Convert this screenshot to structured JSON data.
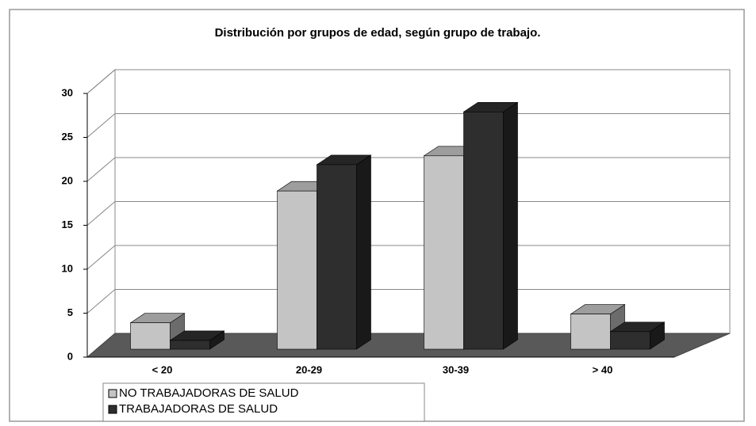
{
  "chart_data": {
    "type": "bar3d",
    "title": "Distribución por grupos de edad, según grupo de trabajo.",
    "categories": [
      "< 20",
      "20-29",
      "30-39",
      "> 40"
    ],
    "series": [
      {
        "name": "NO TRABAJADORAS DE SALUD",
        "color": "#c4c4c4",
        "values": [
          3,
          18,
          22,
          4
        ]
      },
      {
        "name": "TRABAJADORAS DE SALUD",
        "color": "#2e2e2e",
        "values": [
          1,
          21,
          27,
          2
        ]
      }
    ],
    "ylim": [
      0,
      30
    ],
    "yticks": [
      0,
      5,
      10,
      15,
      20,
      25,
      30
    ],
    "grid": true
  }
}
